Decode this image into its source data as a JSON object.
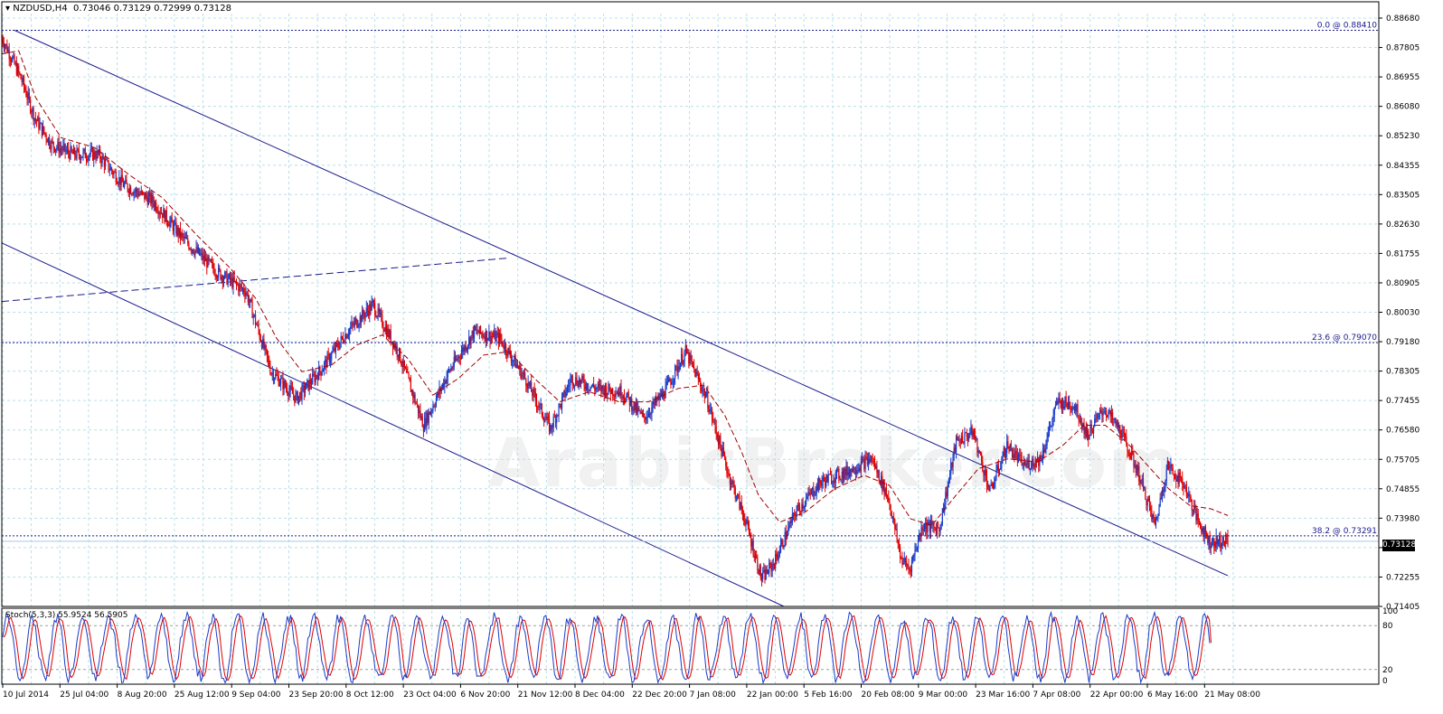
{
  "header": {
    "symbol": "NZDUSD,H4",
    "ohlc": "0.73046 0.73129 0.72999 0.73128",
    "current_price": "0.73128"
  },
  "watermark": "ArabicBroker.com",
  "colors": {
    "bull_candle": "#1a3cc8",
    "bear_candle": "#e00000",
    "moving_average": "#a00000",
    "channel": "#1a1a8c",
    "grid": "#b8e0e8",
    "stoch_main": "#1a3cc8",
    "stoch_signal": "#e00000"
  },
  "chart_data": [
    {
      "type": "line",
      "style": "candlestick",
      "symbol": "NZDUSD",
      "timeframe": "H4",
      "x_tick_labels": [
        "10 Jul 2014",
        "25 Jul 04:00",
        "8 Aug 20:00",
        "25 Aug 12:00",
        "9 Sep 04:00",
        "23 Sep 20:00",
        "8 Oct 12:00",
        "23 Oct 04:00",
        "6 Nov 20:00",
        "21 Nov 12:00",
        "8 Dec 04:00",
        "22 Dec 20:00",
        "7 Jan 08:00",
        "22 Jan 00:00",
        "5 Feb 16:00",
        "20 Feb 08:00",
        "9 Mar 00:00",
        "23 Mar 16:00",
        "7 Apr 08:00",
        "22 Apr 00:00",
        "6 May 16:00",
        "21 May 08:00"
      ],
      "y_tick_labels": [
        "0.88680",
        "0.87805",
        "0.86955",
        "0.86080",
        "0.85230",
        "0.84355",
        "0.83505",
        "0.82630",
        "0.81755",
        "0.80905",
        "0.80030",
        "0.79180",
        "0.78305",
        "0.77455",
        "0.76580",
        "0.75705",
        "0.74855",
        "0.73980",
        "0.73128",
        "0.72255",
        "0.71405"
      ],
      "ylim": [
        0.7118,
        0.8891
      ],
      "grid": true,
      "price_path": [
        {
          "x": 0,
          "y": 0.8825
        },
        {
          "x": 5,
          "y": 0.876
        },
        {
          "x": 10,
          "y": 0.869
        },
        {
          "x": 16,
          "y": 0.858
        },
        {
          "x": 24,
          "y": 0.85
        },
        {
          "x": 34,
          "y": 0.847
        },
        {
          "x": 46,
          "y": 0.847
        },
        {
          "x": 58,
          "y": 0.838
        },
        {
          "x": 72,
          "y": 0.833
        },
        {
          "x": 86,
          "y": 0.822
        },
        {
          "x": 102,
          "y": 0.812
        },
        {
          "x": 116,
          "y": 0.806
        },
        {
          "x": 128,
          "y": 0.782
        },
        {
          "x": 140,
          "y": 0.774
        },
        {
          "x": 152,
          "y": 0.783
        },
        {
          "x": 164,
          "y": 0.794
        },
        {
          "x": 176,
          "y": 0.802
        },
        {
          "x": 188,
          "y": 0.788
        },
        {
          "x": 200,
          "y": 0.766
        },
        {
          "x": 212,
          "y": 0.782
        },
        {
          "x": 224,
          "y": 0.794
        },
        {
          "x": 236,
          "y": 0.792
        },
        {
          "x": 248,
          "y": 0.78
        },
        {
          "x": 260,
          "y": 0.765
        },
        {
          "x": 270,
          "y": 0.78
        },
        {
          "x": 282,
          "y": 0.777
        },
        {
          "x": 294,
          "y": 0.776
        },
        {
          "x": 304,
          "y": 0.768
        },
        {
          "x": 314,
          "y": 0.776
        },
        {
          "x": 324,
          "y": 0.788
        },
        {
          "x": 334,
          "y": 0.774
        },
        {
          "x": 344,
          "y": 0.752
        },
        {
          "x": 352,
          "y": 0.738
        },
        {
          "x": 360,
          "y": 0.72
        },
        {
          "x": 366,
          "y": 0.725
        },
        {
          "x": 376,
          "y": 0.74
        },
        {
          "x": 388,
          "y": 0.749
        },
        {
          "x": 400,
          "y": 0.752
        },
        {
          "x": 412,
          "y": 0.756
        },
        {
          "x": 420,
          "y": 0.744
        },
        {
          "x": 426,
          "y": 0.726
        },
        {
          "x": 430,
          "y": 0.723
        },
        {
          "x": 436,
          "y": 0.736
        },
        {
          "x": 444,
          "y": 0.735
        },
        {
          "x": 452,
          "y": 0.761
        },
        {
          "x": 460,
          "y": 0.764
        },
        {
          "x": 468,
          "y": 0.746
        },
        {
          "x": 476,
          "y": 0.76
        },
        {
          "x": 484,
          "y": 0.754
        },
        {
          "x": 492,
          "y": 0.756
        },
        {
          "x": 500,
          "y": 0.773
        },
        {
          "x": 508,
          "y": 0.772
        },
        {
          "x": 514,
          "y": 0.763
        },
        {
          "x": 522,
          "y": 0.771
        },
        {
          "x": 530,
          "y": 0.764
        },
        {
          "x": 538,
          "y": 0.752
        },
        {
          "x": 546,
          "y": 0.736
        },
        {
          "x": 552,
          "y": 0.754
        },
        {
          "x": 560,
          "y": 0.748
        },
        {
          "x": 566,
          "y": 0.738
        },
        {
          "x": 572,
          "y": 0.731
        },
        {
          "x": 580,
          "y": 0.7313
        }
      ],
      "moving_average_path": [
        {
          "x": 0,
          "y": 0.877
        },
        {
          "x": 8,
          "y": 0.878
        },
        {
          "x": 16,
          "y": 0.864
        },
        {
          "x": 28,
          "y": 0.852
        },
        {
          "x": 44,
          "y": 0.849
        },
        {
          "x": 60,
          "y": 0.841
        },
        {
          "x": 76,
          "y": 0.834
        },
        {
          "x": 92,
          "y": 0.823
        },
        {
          "x": 108,
          "y": 0.813
        },
        {
          "x": 120,
          "y": 0.804
        },
        {
          "x": 130,
          "y": 0.792
        },
        {
          "x": 142,
          "y": 0.782
        },
        {
          "x": 156,
          "y": 0.784
        },
        {
          "x": 168,
          "y": 0.79
        },
        {
          "x": 180,
          "y": 0.793
        },
        {
          "x": 192,
          "y": 0.786
        },
        {
          "x": 204,
          "y": 0.775
        },
        {
          "x": 216,
          "y": 0.78
        },
        {
          "x": 228,
          "y": 0.787
        },
        {
          "x": 240,
          "y": 0.788
        },
        {
          "x": 252,
          "y": 0.78
        },
        {
          "x": 264,
          "y": 0.773
        },
        {
          "x": 278,
          "y": 0.776
        },
        {
          "x": 292,
          "y": 0.773
        },
        {
          "x": 306,
          "y": 0.773
        },
        {
          "x": 320,
          "y": 0.777
        },
        {
          "x": 332,
          "y": 0.778
        },
        {
          "x": 342,
          "y": 0.769
        },
        {
          "x": 350,
          "y": 0.758
        },
        {
          "x": 358,
          "y": 0.745
        },
        {
          "x": 368,
          "y": 0.737
        },
        {
          "x": 380,
          "y": 0.74
        },
        {
          "x": 394,
          "y": 0.747
        },
        {
          "x": 408,
          "y": 0.751
        },
        {
          "x": 420,
          "y": 0.748
        },
        {
          "x": 430,
          "y": 0.738
        },
        {
          "x": 440,
          "y": 0.736
        },
        {
          "x": 450,
          "y": 0.744
        },
        {
          "x": 462,
          "y": 0.753
        },
        {
          "x": 476,
          "y": 0.756
        },
        {
          "x": 490,
          "y": 0.755
        },
        {
          "x": 502,
          "y": 0.76
        },
        {
          "x": 512,
          "y": 0.766
        },
        {
          "x": 522,
          "y": 0.766
        },
        {
          "x": 532,
          "y": 0.761
        },
        {
          "x": 542,
          "y": 0.754
        },
        {
          "x": 552,
          "y": 0.747
        },
        {
          "x": 562,
          "y": 0.742
        },
        {
          "x": 572,
          "y": 0.741
        },
        {
          "x": 580,
          "y": 0.739
        }
      ],
      "lines": {
        "channel_upper": {
          "x1": 6,
          "y1": 0.8841,
          "x2": 580,
          "y2": 0.721
        },
        "channel_lower": {
          "x1": 0,
          "y1": 0.8205,
          "x2": 370,
          "y2": 0.7118
        },
        "dashed_trend": {
          "x1": 0,
          "y1": 0.803,
          "x2": 240,
          "y2": 0.816
        }
      },
      "fibonacci_levels": [
        {
          "label": "0.0 @ 0.88410",
          "value": 0.8841
        },
        {
          "label": "23.6 @ 0.79070",
          "value": 0.7907
        },
        {
          "label": "38.2 @ 0.73291",
          "value": 0.73291
        }
      ],
      "current_price_value": 0.73128
    },
    {
      "type": "line",
      "title": "Stoch(5,3,3) 55.9524 56.5905",
      "series": [
        {
          "name": "Main",
          "value": 55.9524
        },
        {
          "name": "Signal",
          "value": 56.5905
        }
      ],
      "ylim": [
        0,
        100
      ],
      "y_tick_labels": [
        "100",
        "80",
        "20",
        "0"
      ],
      "levels": [
        80,
        20
      ]
    }
  ]
}
